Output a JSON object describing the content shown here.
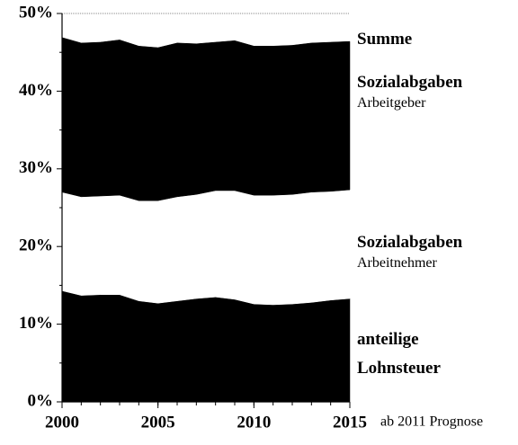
{
  "chart_data": {
    "type": "stacked_area",
    "x": [
      2000,
      2001,
      2002,
      2003,
      2004,
      2005,
      2006,
      2007,
      2008,
      2009,
      2010,
      2011,
      2012,
      2013,
      2014,
      2015
    ],
    "xlim": [
      2000,
      2015
    ],
    "xticks": [
      2000,
      2005,
      2010,
      2015
    ],
    "ylim": [
      0,
      50
    ],
    "yticks": [
      {
        "value": 0,
        "label": "0%"
      },
      {
        "value": 10,
        "label": "10%"
      },
      {
        "value": 20,
        "label": "20%"
      },
      {
        "value": 30,
        "label": "30%"
      },
      {
        "value": 40,
        "label": "40%"
      },
      {
        "value": 50,
        "label": "50%"
      }
    ],
    "yminorticks": [
      5,
      15,
      25,
      35,
      45
    ],
    "series": [
      {
        "name": "anteilige Lohnsteuer",
        "color": "#000000",
        "values": [
          14.3,
          13.7,
          13.8,
          13.8,
          13.0,
          12.7,
          13.0,
          13.3,
          13.5,
          13.2,
          12.6,
          12.5,
          12.6,
          12.8,
          13.1,
          13.3
        ]
      },
      {
        "name": "Sozialabgaben",
        "detail": "Arbeitnehmer",
        "color": "#ffffff",
        "values": [
          12.7,
          12.7,
          12.7,
          12.8,
          12.9,
          13.2,
          13.4,
          13.4,
          13.7,
          14.0,
          14.0,
          14.1,
          14.1,
          14.2,
          14.0,
          14.0
        ]
      },
      {
        "name": "Sozialabgaben",
        "detail": "Arbeitgeber",
        "color": "#000000",
        "values": [
          19.9,
          19.8,
          19.8,
          20.0,
          19.9,
          19.7,
          19.8,
          19.4,
          19.1,
          19.3,
          19.2,
          19.2,
          19.2,
          19.2,
          19.2,
          19.1
        ]
      }
    ],
    "total_label": "Summe",
    "annotation": "ab 2011 Prognose"
  }
}
